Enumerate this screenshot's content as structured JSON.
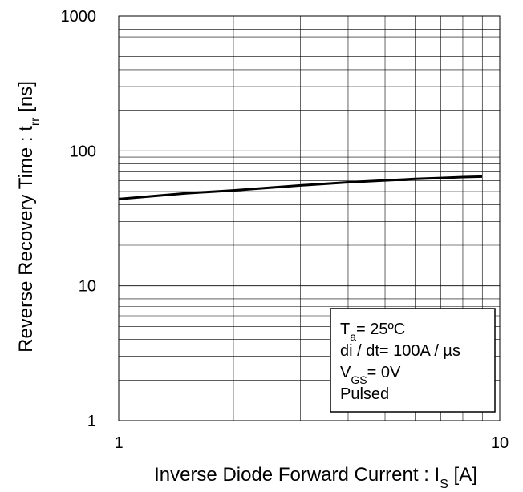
{
  "chart_data": {
    "type": "line",
    "title": "",
    "xlabel": {
      "main": "Inverse Diode Forward Current : I",
      "sub": "S",
      "unit": " [A]"
    },
    "ylabel": {
      "main": "Reverse Recovery Time : t",
      "sub": "rr",
      "unit": " [ns]"
    },
    "x_scale": "log",
    "y_scale": "log",
    "xlim": [
      1,
      10
    ],
    "ylim": [
      1,
      1000
    ],
    "x_ticks": [
      "1",
      "10"
    ],
    "y_ticks": [
      "1",
      "10",
      "100",
      "1000"
    ],
    "grid": true,
    "legend": "none",
    "series": [
      {
        "x": [
          1,
          1.5,
          2,
          3,
          4,
          5,
          6,
          7,
          8,
          9
        ],
        "y": [
          44,
          48.5,
          51,
          55.5,
          58.5,
          60.5,
          62,
          63,
          64,
          64.5
        ],
        "color": "#000000"
      }
    ],
    "conditions_box": {
      "position": "bottom-right",
      "lines": [
        {
          "main": "T",
          "sub": "a",
          "rest": "= 25ºC"
        },
        {
          "main": "di / dt= 100A / µs",
          "sub": "",
          "rest": ""
        },
        {
          "main": "V",
          "sub": "GS",
          "rest": "= 0V"
        },
        {
          "main": "Pulsed",
          "sub": "",
          "rest": ""
        }
      ]
    }
  }
}
